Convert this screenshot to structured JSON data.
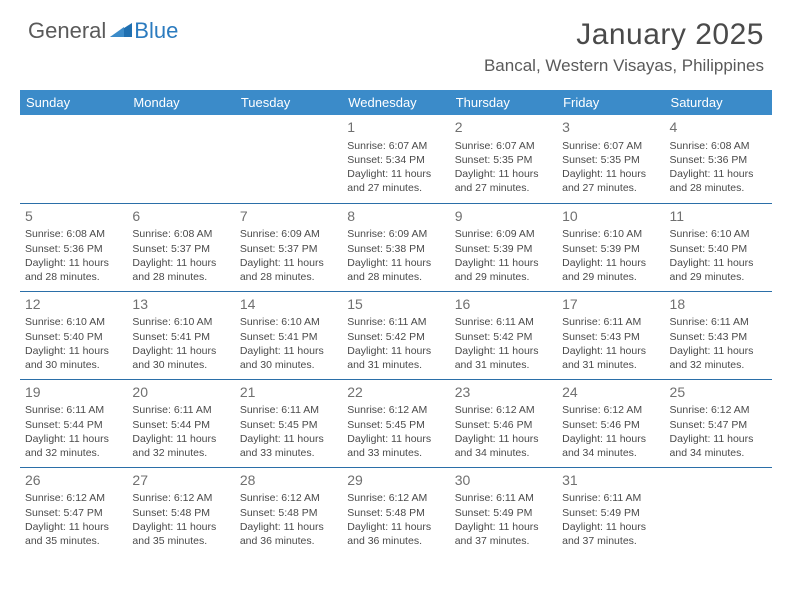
{
  "logo": {
    "text1": "General",
    "text2": "Blue"
  },
  "title": "January 2025",
  "location": "Bancal, Western Visayas, Philippines",
  "colors": {
    "header_bg": "#3b8bc9",
    "header_text": "#ffffff",
    "rule": "#2b6fa8",
    "body_text": "#4a4a4a",
    "daynum": "#707070",
    "logo_blue": "#2b7bbf",
    "background": "#ffffff"
  },
  "day_headers": [
    "Sunday",
    "Monday",
    "Tuesday",
    "Wednesday",
    "Thursday",
    "Friday",
    "Saturday"
  ],
  "weeks": [
    [
      {
        "n": "",
        "lines": []
      },
      {
        "n": "",
        "lines": []
      },
      {
        "n": "",
        "lines": []
      },
      {
        "n": "1",
        "lines": [
          "Sunrise: 6:07 AM",
          "Sunset: 5:34 PM",
          "Daylight: 11 hours and 27 minutes."
        ]
      },
      {
        "n": "2",
        "lines": [
          "Sunrise: 6:07 AM",
          "Sunset: 5:35 PM",
          "Daylight: 11 hours and 27 minutes."
        ]
      },
      {
        "n": "3",
        "lines": [
          "Sunrise: 6:07 AM",
          "Sunset: 5:35 PM",
          "Daylight: 11 hours and 27 minutes."
        ]
      },
      {
        "n": "4",
        "lines": [
          "Sunrise: 6:08 AM",
          "Sunset: 5:36 PM",
          "Daylight: 11 hours and 28 minutes."
        ]
      }
    ],
    [
      {
        "n": "5",
        "lines": [
          "Sunrise: 6:08 AM",
          "Sunset: 5:36 PM",
          "Daylight: 11 hours and 28 minutes."
        ]
      },
      {
        "n": "6",
        "lines": [
          "Sunrise: 6:08 AM",
          "Sunset: 5:37 PM",
          "Daylight: 11 hours and 28 minutes."
        ]
      },
      {
        "n": "7",
        "lines": [
          "Sunrise: 6:09 AM",
          "Sunset: 5:37 PM",
          "Daylight: 11 hours and 28 minutes."
        ]
      },
      {
        "n": "8",
        "lines": [
          "Sunrise: 6:09 AM",
          "Sunset: 5:38 PM",
          "Daylight: 11 hours and 28 minutes."
        ]
      },
      {
        "n": "9",
        "lines": [
          "Sunrise: 6:09 AM",
          "Sunset: 5:39 PM",
          "Daylight: 11 hours and 29 minutes."
        ]
      },
      {
        "n": "10",
        "lines": [
          "Sunrise: 6:10 AM",
          "Sunset: 5:39 PM",
          "Daylight: 11 hours and 29 minutes."
        ]
      },
      {
        "n": "11",
        "lines": [
          "Sunrise: 6:10 AM",
          "Sunset: 5:40 PM",
          "Daylight: 11 hours and 29 minutes."
        ]
      }
    ],
    [
      {
        "n": "12",
        "lines": [
          "Sunrise: 6:10 AM",
          "Sunset: 5:40 PM",
          "Daylight: 11 hours and 30 minutes."
        ]
      },
      {
        "n": "13",
        "lines": [
          "Sunrise: 6:10 AM",
          "Sunset: 5:41 PM",
          "Daylight: 11 hours and 30 minutes."
        ]
      },
      {
        "n": "14",
        "lines": [
          "Sunrise: 6:10 AM",
          "Sunset: 5:41 PM",
          "Daylight: 11 hours and 30 minutes."
        ]
      },
      {
        "n": "15",
        "lines": [
          "Sunrise: 6:11 AM",
          "Sunset: 5:42 PM",
          "Daylight: 11 hours and 31 minutes."
        ]
      },
      {
        "n": "16",
        "lines": [
          "Sunrise: 6:11 AM",
          "Sunset: 5:42 PM",
          "Daylight: 11 hours and 31 minutes."
        ]
      },
      {
        "n": "17",
        "lines": [
          "Sunrise: 6:11 AM",
          "Sunset: 5:43 PM",
          "Daylight: 11 hours and 31 minutes."
        ]
      },
      {
        "n": "18",
        "lines": [
          "Sunrise: 6:11 AM",
          "Sunset: 5:43 PM",
          "Daylight: 11 hours and 32 minutes."
        ]
      }
    ],
    [
      {
        "n": "19",
        "lines": [
          "Sunrise: 6:11 AM",
          "Sunset: 5:44 PM",
          "Daylight: 11 hours and 32 minutes."
        ]
      },
      {
        "n": "20",
        "lines": [
          "Sunrise: 6:11 AM",
          "Sunset: 5:44 PM",
          "Daylight: 11 hours and 32 minutes."
        ]
      },
      {
        "n": "21",
        "lines": [
          "Sunrise: 6:11 AM",
          "Sunset: 5:45 PM",
          "Daylight: 11 hours and 33 minutes."
        ]
      },
      {
        "n": "22",
        "lines": [
          "Sunrise: 6:12 AM",
          "Sunset: 5:45 PM",
          "Daylight: 11 hours and 33 minutes."
        ]
      },
      {
        "n": "23",
        "lines": [
          "Sunrise: 6:12 AM",
          "Sunset: 5:46 PM",
          "Daylight: 11 hours and 34 minutes."
        ]
      },
      {
        "n": "24",
        "lines": [
          "Sunrise: 6:12 AM",
          "Sunset: 5:46 PM",
          "Daylight: 11 hours and 34 minutes."
        ]
      },
      {
        "n": "25",
        "lines": [
          "Sunrise: 6:12 AM",
          "Sunset: 5:47 PM",
          "Daylight: 11 hours and 34 minutes."
        ]
      }
    ],
    [
      {
        "n": "26",
        "lines": [
          "Sunrise: 6:12 AM",
          "Sunset: 5:47 PM",
          "Daylight: 11 hours and 35 minutes."
        ]
      },
      {
        "n": "27",
        "lines": [
          "Sunrise: 6:12 AM",
          "Sunset: 5:48 PM",
          "Daylight: 11 hours and 35 minutes."
        ]
      },
      {
        "n": "28",
        "lines": [
          "Sunrise: 6:12 AM",
          "Sunset: 5:48 PM",
          "Daylight: 11 hours and 36 minutes."
        ]
      },
      {
        "n": "29",
        "lines": [
          "Sunrise: 6:12 AM",
          "Sunset: 5:48 PM",
          "Daylight: 11 hours and 36 minutes."
        ]
      },
      {
        "n": "30",
        "lines": [
          "Sunrise: 6:11 AM",
          "Sunset: 5:49 PM",
          "Daylight: 11 hours and 37 minutes."
        ]
      },
      {
        "n": "31",
        "lines": [
          "Sunrise: 6:11 AM",
          "Sunset: 5:49 PM",
          "Daylight: 11 hours and 37 minutes."
        ]
      },
      {
        "n": "",
        "lines": []
      }
    ]
  ]
}
